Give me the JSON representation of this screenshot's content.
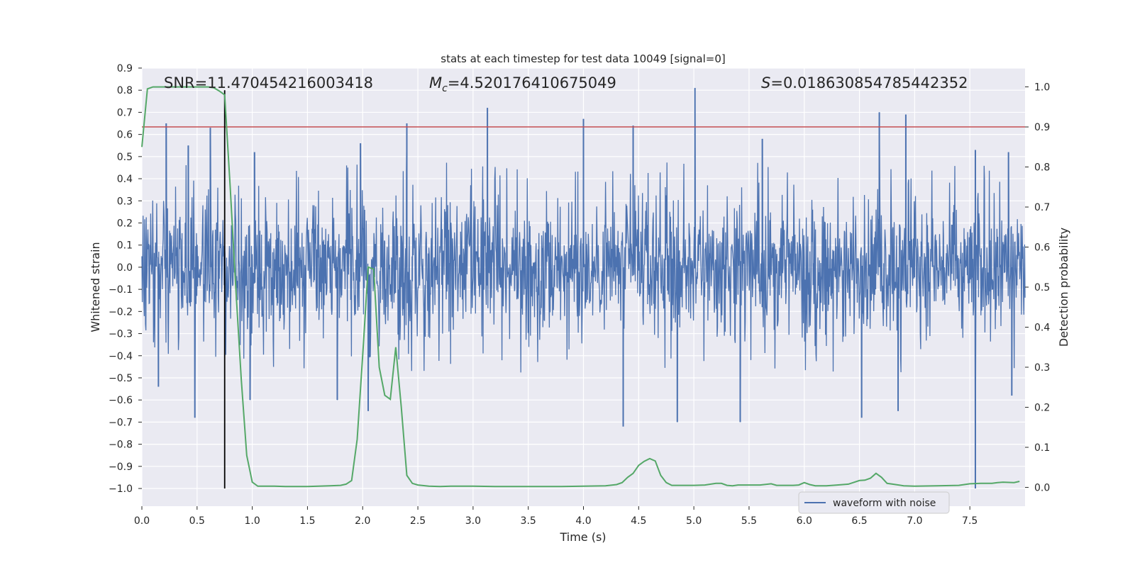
{
  "chart_data": {
    "type": "line",
    "title": "stats at each timestep for test data 10049 [signal=0]",
    "xlabel": "Time (s)",
    "ylabel_left": "Whitened strain",
    "ylabel_right": "Detection probability",
    "xlim": [
      0.0,
      8.0
    ],
    "ylim_left": [
      -1.08,
      0.9
    ],
    "ylim_right": [
      -0.047,
      1.047
    ],
    "x_ticks": [
      0.0,
      0.5,
      1.0,
      1.5,
      2.0,
      2.5,
      3.0,
      3.5,
      4.0,
      4.5,
      5.0,
      5.5,
      6.0,
      6.5,
      7.0,
      7.5
    ],
    "x_tick_labels": [
      "0.0",
      "0.5",
      "1.0",
      "1.5",
      "2.0",
      "2.5",
      "3.0",
      "3.5",
      "4.0",
      "4.5",
      "5.0",
      "5.5",
      "6.0",
      "6.5",
      "7.0",
      "7.5"
    ],
    "y_left_ticks": [
      0.9,
      0.8,
      0.7,
      0.6,
      0.5,
      0.4,
      0.3,
      0.2,
      0.1,
      0.0,
      -0.1,
      -0.2,
      -0.3,
      -0.4,
      -0.5,
      -0.6,
      -0.7,
      -0.8,
      -0.9,
      -1.0
    ],
    "y_left_tick_labels": [
      "0.9",
      "0.8",
      "0.7",
      "0.6",
      "0.5",
      "0.4",
      "0.3",
      "0.2",
      "0.1",
      "0.0",
      "−0.1",
      "−0.2",
      "−0.3",
      "−0.4",
      "−0.5",
      "−0.6",
      "−0.7",
      "−0.8",
      "−0.9",
      "−1.0"
    ],
    "y_right_ticks": [
      1.0,
      0.9,
      0.8,
      0.7,
      0.6,
      0.5,
      0.4,
      0.3,
      0.2,
      0.1,
      0.0
    ],
    "y_right_tick_labels": [
      "1.0",
      "0.9",
      "0.8",
      "0.7",
      "0.6",
      "0.5",
      "0.4",
      "0.3",
      "0.2",
      "0.1",
      "0.0"
    ],
    "grid": true,
    "legend": {
      "placement": "lower-right",
      "entries": [
        "waveform with noise"
      ]
    },
    "annotations": {
      "snr": "SNR=11.470454216003418",
      "mc_symbol": "M",
      "mc_sub": "c",
      "mc_value": "=4.520176410675049",
      "s_symbol": "S",
      "s_value": "=0.018630854785442352"
    },
    "threshold_probability": 0.9,
    "marker_time": 0.75,
    "waveform": {
      "name": "waveform with noise",
      "color": "#4c72b0",
      "typical_range": [
        -0.35,
        0.35
      ],
      "spikes": [
        {
          "t": 0.22,
          "v": 0.65
        },
        {
          "t": 0.42,
          "v": 0.55
        },
        {
          "t": 0.62,
          "v": 0.63
        },
        {
          "t": 1.02,
          "v": 0.52
        },
        {
          "t": 1.98,
          "v": 0.56
        },
        {
          "t": 2.4,
          "v": 0.65
        },
        {
          "t": 3.13,
          "v": 0.72
        },
        {
          "t": 4.0,
          "v": 0.67
        },
        {
          "t": 4.45,
          "v": 0.64
        },
        {
          "t": 5.01,
          "v": 0.81
        },
        {
          "t": 5.62,
          "v": 0.58
        },
        {
          "t": 6.68,
          "v": 0.7
        },
        {
          "t": 6.92,
          "v": 0.69
        },
        {
          "t": 7.55,
          "v": 0.53
        },
        {
          "t": 7.85,
          "v": 0.52
        },
        {
          "t": 0.15,
          "v": -0.54
        },
        {
          "t": 0.48,
          "v": -0.68
        },
        {
          "t": 0.98,
          "v": -0.6
        },
        {
          "t": 1.77,
          "v": -0.6
        },
        {
          "t": 2.05,
          "v": -0.65
        },
        {
          "t": 4.36,
          "v": -0.72
        },
        {
          "t": 4.85,
          "v": -0.7
        },
        {
          "t": 5.42,
          "v": -0.7
        },
        {
          "t": 6.52,
          "v": -0.68
        },
        {
          "t": 6.85,
          "v": -0.65
        },
        {
          "t": 7.55,
          "v": -1.0
        },
        {
          "t": 7.88,
          "v": -0.58
        }
      ]
    },
    "probability": {
      "color": "#55a868",
      "x": [
        0.0,
        0.05,
        0.1,
        0.15,
        0.2,
        0.25,
        0.3,
        0.35,
        0.4,
        0.45,
        0.5,
        0.55,
        0.6,
        0.65,
        0.7,
        0.75,
        0.8,
        0.85,
        0.9,
        0.95,
        1.0,
        1.05,
        1.1,
        1.2,
        1.3,
        1.4,
        1.5,
        1.6,
        1.7,
        1.8,
        1.85,
        1.9,
        1.95,
        2.0,
        2.05,
        2.1,
        2.15,
        2.2,
        2.25,
        2.3,
        2.35,
        2.4,
        2.45,
        2.5,
        2.6,
        2.7,
        2.8,
        2.9,
        3.0,
        3.2,
        3.4,
        3.6,
        3.8,
        4.0,
        4.2,
        4.3,
        4.35,
        4.4,
        4.45,
        4.5,
        4.55,
        4.6,
        4.65,
        4.7,
        4.75,
        4.8,
        4.85,
        4.9,
        5.0,
        5.1,
        5.2,
        5.25,
        5.3,
        5.35,
        5.4,
        5.5,
        5.6,
        5.7,
        5.75,
        5.8,
        5.9,
        5.95,
        6.0,
        6.05,
        6.1,
        6.2,
        6.3,
        6.4,
        6.5,
        6.55,
        6.6,
        6.65,
        6.7,
        6.75,
        6.8,
        6.9,
        7.0,
        7.2,
        7.4,
        7.5,
        7.6,
        7.7,
        7.75,
        7.8,
        7.9,
        7.95
      ],
      "y": [
        0.85,
        0.995,
        1.0,
        1.0,
        1.0,
        1.0,
        1.0,
        1.0,
        1.0,
        1.0,
        1.0,
        1.0,
        1.0,
        0.998,
        0.99,
        0.98,
        0.75,
        0.5,
        0.27,
        0.08,
        0.013,
        0.003,
        0.003,
        0.003,
        0.002,
        0.002,
        0.002,
        0.003,
        0.004,
        0.005,
        0.008,
        0.017,
        0.12,
        0.33,
        0.55,
        0.545,
        0.3,
        0.23,
        0.22,
        0.35,
        0.2,
        0.03,
        0.01,
        0.006,
        0.003,
        0.002,
        0.003,
        0.003,
        0.003,
        0.002,
        0.002,
        0.002,
        0.002,
        0.003,
        0.004,
        0.007,
        0.012,
        0.025,
        0.035,
        0.055,
        0.065,
        0.072,
        0.066,
        0.03,
        0.012,
        0.005,
        0.005,
        0.005,
        0.005,
        0.006,
        0.01,
        0.01,
        0.005,
        0.004,
        0.006,
        0.006,
        0.006,
        0.009,
        0.005,
        0.005,
        0.005,
        0.006,
        0.012,
        0.007,
        0.004,
        0.004,
        0.006,
        0.008,
        0.017,
        0.018,
        0.023,
        0.035,
        0.025,
        0.01,
        0.008,
        0.004,
        0.003,
        0.004,
        0.005,
        0.009,
        0.01,
        0.01,
        0.012,
        0.013,
        0.012,
        0.015
      ]
    },
    "colors": {
      "threshold": "#c44e52",
      "marker": "#000000",
      "background": "#eaeaf2",
      "grid": "#ffffff"
    }
  }
}
